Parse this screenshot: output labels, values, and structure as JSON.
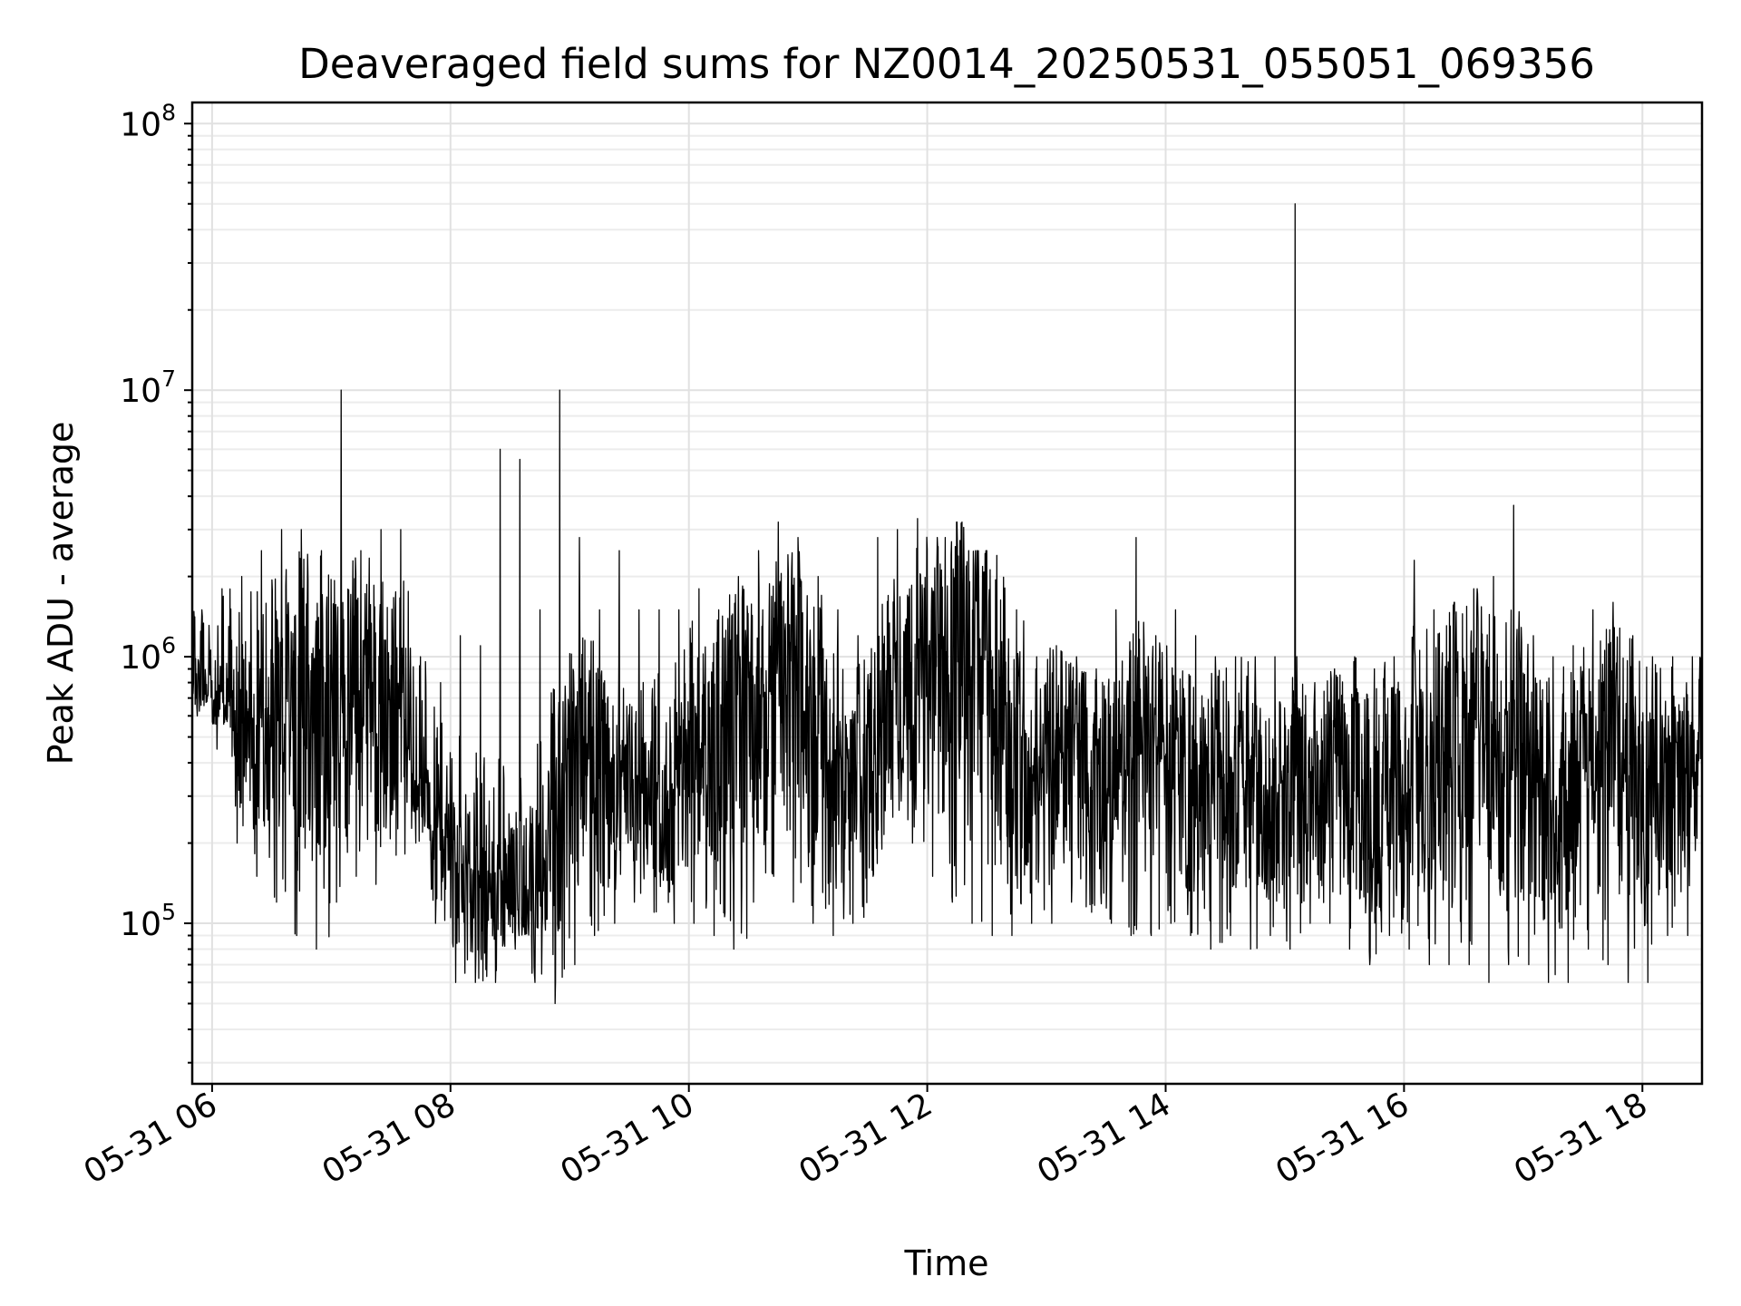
{
  "chart_data": {
    "type": "line",
    "title": "Deaveraged field sums for NZ0014_20250531_055051_069356",
    "xlabel": "Time",
    "ylabel": "Peak ADU - average",
    "y_scale": "log",
    "ylim": [
      25000,
      120000000
    ],
    "xlim": [
      "2025-05-31 05:50",
      "2025-05-31 18:30"
    ],
    "grid": true,
    "line_color": "#000000",
    "x_ticks": [
      "05-31 06",
      "05-31 08",
      "05-31 10",
      "05-31 12",
      "05-31 14",
      "05-31 16",
      "05-31 18"
    ],
    "y_ticks": [
      {
        "base": "10",
        "exp": "5",
        "value": 100000
      },
      {
        "base": "10",
        "exp": "6",
        "value": 1000000
      },
      {
        "base": "10",
        "exp": "7",
        "value": 10000000
      },
      {
        "base": "10",
        "exp": "8",
        "value": 100000000
      }
    ],
    "series": [
      {
        "x_start": "2025-05-31 05:50",
        "x_end": "2025-05-31 18:30",
        "y_min": [
          600000,
          450000,
          200000,
          150000,
          120000,
          90000,
          80000,
          120000,
          150000,
          140000,
          180000,
          200000,
          100000,
          60000,
          60000,
          60000,
          80000,
          60000,
          50000,
          70000,
          90000,
          100000,
          120000,
          110000,
          100000,
          100000,
          90000,
          80000,
          120000,
          150000,
          120000,
          100000,
          90000,
          100000,
          150000,
          250000,
          200000,
          150000,
          120000,
          100000,
          90000,
          90000,
          100000,
          100000,
          120000,
          110000,
          100000,
          90000,
          90000,
          100000,
          90000,
          80000,
          90000,
          80000,
          90000,
          80000,
          100000,
          100000,
          80000,
          70000,
          90000,
          80000,
          70000,
          70000,
          70000,
          60000,
          70000,
          70000,
          60000,
          60000,
          80000,
          70000,
          60000,
          60000,
          90000,
          90000
        ],
        "y_max": [
          1500000,
          1800000,
          2000000,
          2500000,
          3000000,
          3000000,
          2500000,
          10000000,
          2500000,
          3000000,
          3000000,
          1000000,
          800000,
          1200000,
          1100000,
          6000000,
          5500000,
          1500000,
          10000000,
          2800000,
          1500000,
          2500000,
          1500000,
          1500000,
          1500000,
          1800000,
          1500000,
          2000000,
          2500000,
          3200000,
          2800000,
          2000000,
          1500000,
          1200000,
          2800000,
          3000000,
          3300000,
          2800000,
          3200000,
          2500000,
          2400000,
          1500000,
          1000000,
          1100000,
          1000000,
          900000,
          1500000,
          2800000,
          1200000,
          1500000,
          1200000,
          1000000,
          1000000,
          1000000,
          1000000,
          50000000,
          800000,
          900000,
          1000000,
          900000,
          1000000,
          2300000,
          1500000,
          1600000,
          1800000,
          2000000,
          3700000,
          1200000,
          1000000,
          1100000,
          1500000,
          1600000,
          1200000,
          1000000,
          1000000,
          1000000
        ],
        "y_mid": [
          800000,
          700000,
          550000,
          500000,
          600000,
          700000,
          600000,
          600000,
          700000,
          600000,
          550000,
          300000,
          200000,
          150000,
          130000,
          130000,
          100000,
          150000,
          250000,
          350000,
          350000,
          300000,
          300000,
          250000,
          300000,
          400000,
          500000,
          600000,
          600000,
          700000,
          700000,
          500000,
          300000,
          300000,
          500000,
          700000,
          800000,
          900000,
          1000000,
          800000,
          600000,
          400000,
          350000,
          400000,
          400000,
          350000,
          350000,
          400000,
          400000,
          350000,
          300000,
          350000,
          300000,
          300000,
          300000,
          300000,
          300000,
          350000,
          300000,
          300000,
          350000,
          400000,
          400000,
          500000,
          500000,
          450000,
          450000,
          350000,
          250000,
          300000,
          350000,
          400000,
          350000,
          300000,
          300000,
          350000
        ]
      }
    ]
  }
}
